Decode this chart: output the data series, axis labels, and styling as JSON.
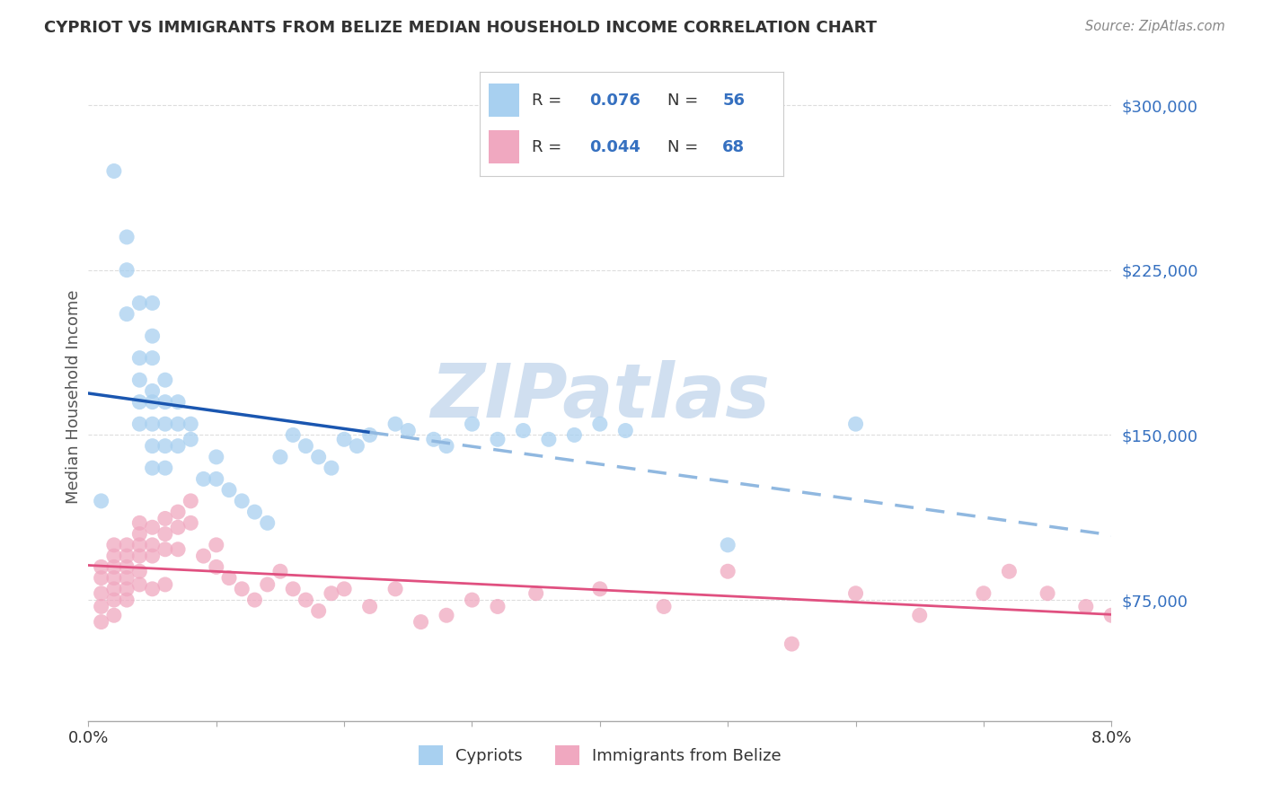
{
  "title": "CYPRIOT VS IMMIGRANTS FROM BELIZE MEDIAN HOUSEHOLD INCOME CORRELATION CHART",
  "source": "Source: ZipAtlas.com",
  "ylabel": "Median Household Income",
  "yticks": [
    75000,
    150000,
    225000,
    300000
  ],
  "ytick_labels": [
    "$75,000",
    "$150,000",
    "$225,000",
    "$300,000"
  ],
  "xmin": 0.0,
  "xmax": 0.08,
  "ymin": 20000,
  "ymax": 315000,
  "cypriot_color": "#a8d0f0",
  "belize_color": "#f0a8c0",
  "cypriot_line_color": "#1a56b0",
  "belize_line_color": "#e05080",
  "dashed_line_color": "#90b8e0",
  "watermark_color": "#d0dff0",
  "grid_color": "#dddddd",
  "cypriot_x": [
    0.001,
    0.002,
    0.003,
    0.003,
    0.003,
    0.004,
    0.004,
    0.004,
    0.004,
    0.004,
    0.005,
    0.005,
    0.005,
    0.005,
    0.005,
    0.005,
    0.005,
    0.005,
    0.006,
    0.006,
    0.006,
    0.006,
    0.006,
    0.007,
    0.007,
    0.007,
    0.008,
    0.008,
    0.009,
    0.01,
    0.01,
    0.011,
    0.012,
    0.013,
    0.014,
    0.015,
    0.016,
    0.017,
    0.018,
    0.019,
    0.02,
    0.021,
    0.022,
    0.024,
    0.025,
    0.027,
    0.028,
    0.03,
    0.032,
    0.034,
    0.036,
    0.038,
    0.04,
    0.042,
    0.05,
    0.06
  ],
  "cypriot_y": [
    120000,
    270000,
    240000,
    225000,
    205000,
    210000,
    185000,
    175000,
    165000,
    155000,
    210000,
    195000,
    185000,
    170000,
    165000,
    155000,
    145000,
    135000,
    175000,
    165000,
    155000,
    145000,
    135000,
    165000,
    155000,
    145000,
    155000,
    148000,
    130000,
    140000,
    130000,
    125000,
    120000,
    115000,
    110000,
    140000,
    150000,
    145000,
    140000,
    135000,
    148000,
    145000,
    150000,
    155000,
    152000,
    148000,
    145000,
    155000,
    148000,
    152000,
    148000,
    150000,
    155000,
    152000,
    100000,
    155000
  ],
  "belize_x": [
    0.001,
    0.001,
    0.001,
    0.001,
    0.001,
    0.002,
    0.002,
    0.002,
    0.002,
    0.002,
    0.002,
    0.002,
    0.003,
    0.003,
    0.003,
    0.003,
    0.003,
    0.003,
    0.004,
    0.004,
    0.004,
    0.004,
    0.004,
    0.004,
    0.005,
    0.005,
    0.005,
    0.005,
    0.006,
    0.006,
    0.006,
    0.006,
    0.007,
    0.007,
    0.007,
    0.008,
    0.008,
    0.009,
    0.01,
    0.01,
    0.011,
    0.012,
    0.013,
    0.014,
    0.015,
    0.016,
    0.017,
    0.018,
    0.019,
    0.02,
    0.022,
    0.024,
    0.026,
    0.028,
    0.03,
    0.032,
    0.035,
    0.04,
    0.045,
    0.05,
    0.055,
    0.06,
    0.065,
    0.07,
    0.072,
    0.075,
    0.078,
    0.08
  ],
  "belize_y": [
    90000,
    85000,
    78000,
    72000,
    65000,
    100000,
    95000,
    90000,
    85000,
    80000,
    75000,
    68000,
    100000,
    95000,
    90000,
    85000,
    80000,
    75000,
    110000,
    105000,
    100000,
    95000,
    88000,
    82000,
    108000,
    100000,
    95000,
    80000,
    112000,
    105000,
    98000,
    82000,
    115000,
    108000,
    98000,
    120000,
    110000,
    95000,
    100000,
    90000,
    85000,
    80000,
    75000,
    82000,
    88000,
    80000,
    75000,
    70000,
    78000,
    80000,
    72000,
    80000,
    65000,
    68000,
    75000,
    72000,
    78000,
    80000,
    72000,
    88000,
    55000,
    78000,
    68000,
    78000,
    88000,
    78000,
    72000,
    68000
  ]
}
